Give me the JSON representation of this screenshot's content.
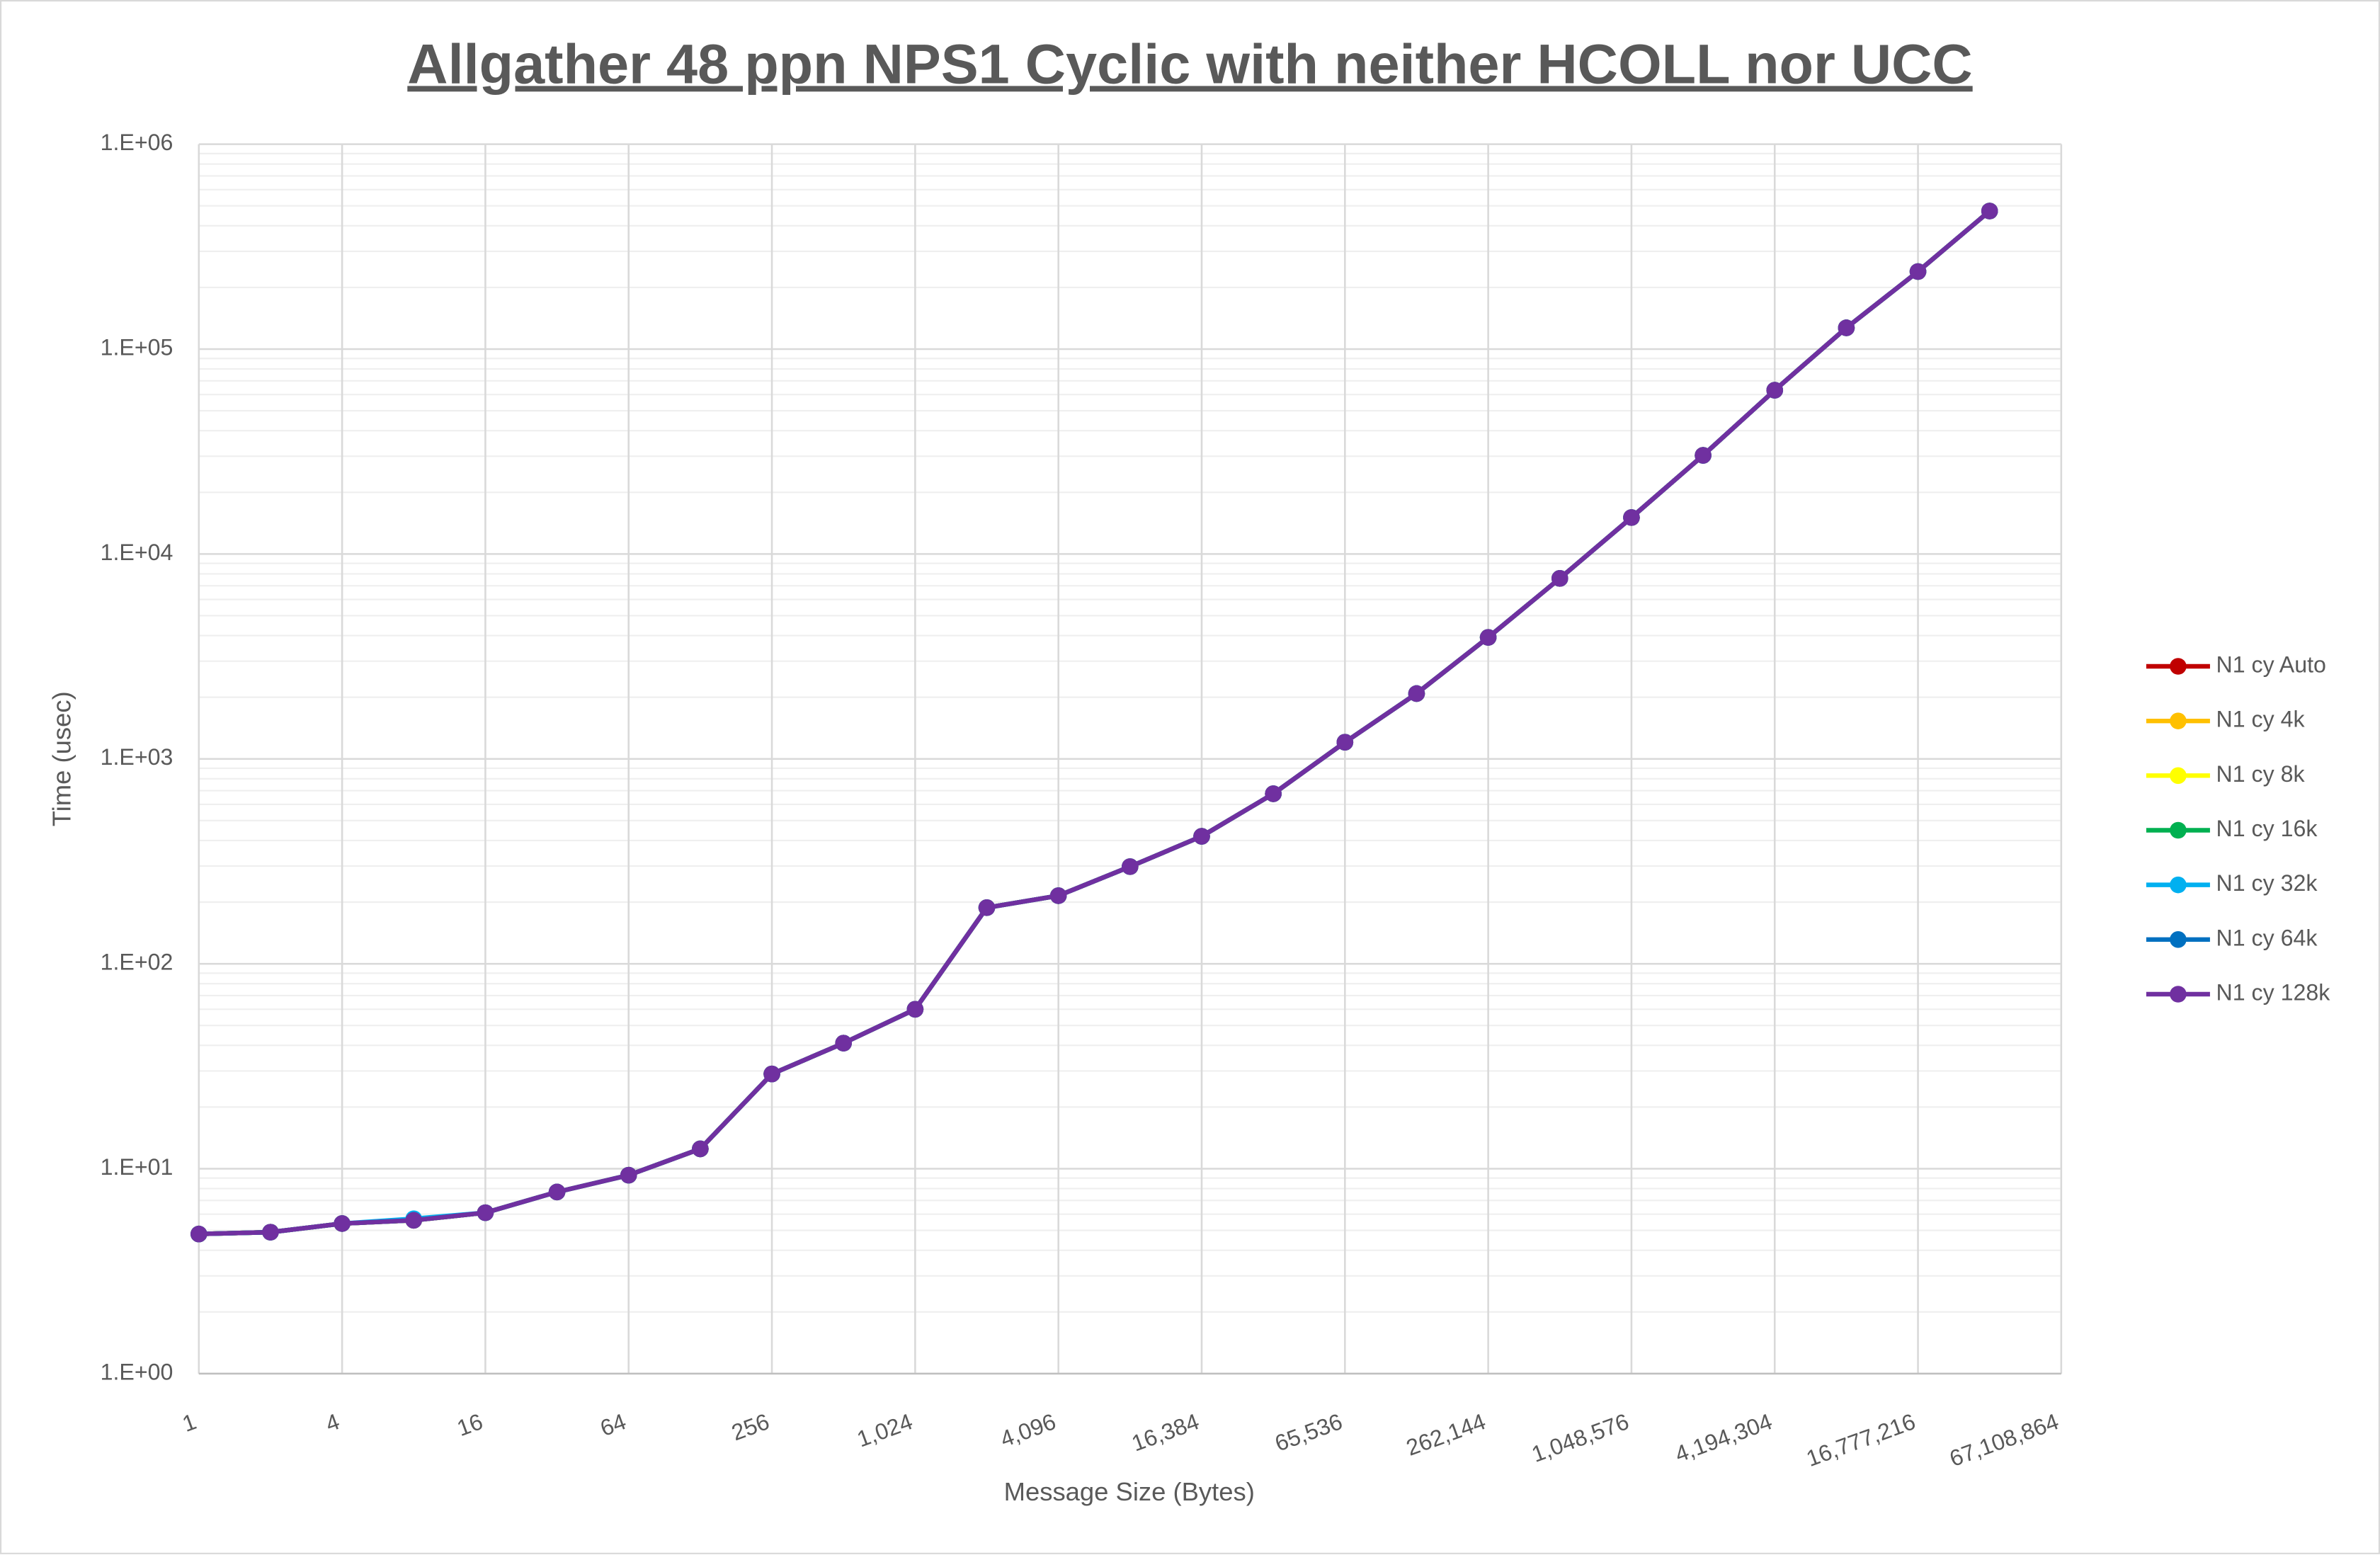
{
  "chart_data": {
    "type": "line",
    "title": "Allgather 48 ppn NPS1 Cyclic with neither HCOLL nor UCC",
    "x_label": "Message Size (Bytes)",
    "y_label": "Time (usec)",
    "xscale": "log",
    "yscale": "log",
    "grid": true,
    "minor_grid": true,
    "legend": "right",
    "x": [
      1,
      2,
      4,
      8,
      16,
      32,
      64,
      128,
      256,
      512,
      1024,
      2048,
      4096,
      8192,
      16384,
      32768,
      65536,
      131072,
      262144,
      524288,
      1048576,
      2097152,
      4194304,
      8388608,
      16777216,
      33554432
    ],
    "xlim": [
      1,
      67108864
    ],
    "xticks": [
      1,
      4,
      16,
      64,
      256,
      {
        "value": 1024,
        "label": "1,024"
      },
      {
        "value": 4096,
        "label": "4,096"
      },
      {
        "value": 16384,
        "label": "16,384"
      },
      {
        "value": 65536,
        "label": "65,536"
      },
      {
        "value": 262144,
        "label": "262,144"
      },
      {
        "value": 1048576,
        "label": "1,048,576"
      },
      {
        "value": 4194304,
        "label": "4,194,304"
      },
      {
        "value": 16777216,
        "label": "16,777,216"
      },
      {
        "value": 67108864,
        "label": "67,108,864"
      }
    ],
    "ylim": [
      1,
      1000000
    ],
    "yticks": [
      {
        "value": 1,
        "label": "1.E+00"
      },
      {
        "value": 10,
        "label": "1.E+01"
      },
      {
        "value": 100,
        "label": "1.E+02"
      },
      {
        "value": 1000,
        "label": "1.E+03"
      },
      {
        "value": 10000,
        "label": "1.E+04"
      },
      {
        "value": 100000,
        "label": "1.E+05"
      },
      {
        "value": 1000000,
        "label": "1.E+06"
      }
    ],
    "series": [
      {
        "name": "N1 cy Auto",
        "color": "#c00000",
        "values": [
          4.8,
          4.9,
          5.4,
          5.6,
          6.1,
          7.7,
          9.3,
          12.5,
          29,
          41,
          60,
          188,
          215,
          298,
          419,
          676,
          1206,
          2084,
          3917,
          7603,
          15066,
          30300,
          63000,
          127000,
          239000,
          472000
        ]
      },
      {
        "name": "N1 cy 4k",
        "color": "#ffc000",
        "values": [
          4.8,
          4.9,
          5.4,
          5.6,
          6.1,
          7.7,
          9.3,
          12.5,
          29,
          41,
          60,
          188,
          215,
          298,
          419,
          676,
          1206,
          2084,
          3917,
          7603,
          15066,
          30300,
          63000,
          127000,
          239000,
          472000
        ]
      },
      {
        "name": "N1 cy 8k",
        "color": "#ffff00",
        "values": [
          4.8,
          4.9,
          5.4,
          5.6,
          6.1,
          7.7,
          9.3,
          12.5,
          29,
          41,
          60,
          188,
          215,
          298,
          419,
          676,
          1206,
          2084,
          3917,
          7603,
          15066,
          30300,
          63000,
          127000,
          239000,
          472000
        ]
      },
      {
        "name": "N1 cy 16k",
        "color": "#00b050",
        "values": [
          4.8,
          4.9,
          5.4,
          5.6,
          6.1,
          7.7,
          9.3,
          12.5,
          29,
          41,
          60,
          188,
          215,
          298,
          419,
          676,
          1206,
          2084,
          3917,
          7603,
          15066,
          30300,
          63000,
          127000,
          239000,
          472000
        ]
      },
      {
        "name": "N1 cy 32k",
        "color": "#00b0f0",
        "values": [
          4.8,
          4.9,
          5.4,
          5.7,
          6.1,
          7.7,
          9.3,
          12.5,
          29,
          41,
          60,
          188,
          215,
          298,
          419,
          676,
          1206,
          2084,
          3917,
          7603,
          15066,
          30300,
          63000,
          127000,
          239000,
          472000
        ]
      },
      {
        "name": "N1 cy 64k",
        "color": "#0070c0",
        "values": [
          4.8,
          4.9,
          5.4,
          5.6,
          6.1,
          7.7,
          9.3,
          12.5,
          29,
          41,
          60,
          188,
          215,
          298,
          419,
          676,
          1206,
          2084,
          3917,
          7603,
          15066,
          30300,
          63000,
          127000,
          239000,
          472000
        ]
      },
      {
        "name": "N1 cy 128k",
        "color": "#7030a0",
        "values": [
          4.8,
          4.9,
          5.4,
          5.6,
          6.1,
          7.7,
          9.3,
          12.5,
          29,
          41,
          60,
          188,
          215,
          298,
          419,
          676,
          1206,
          2084,
          3917,
          7603,
          15066,
          30300,
          63000,
          127000,
          239000,
          472000
        ]
      }
    ]
  }
}
